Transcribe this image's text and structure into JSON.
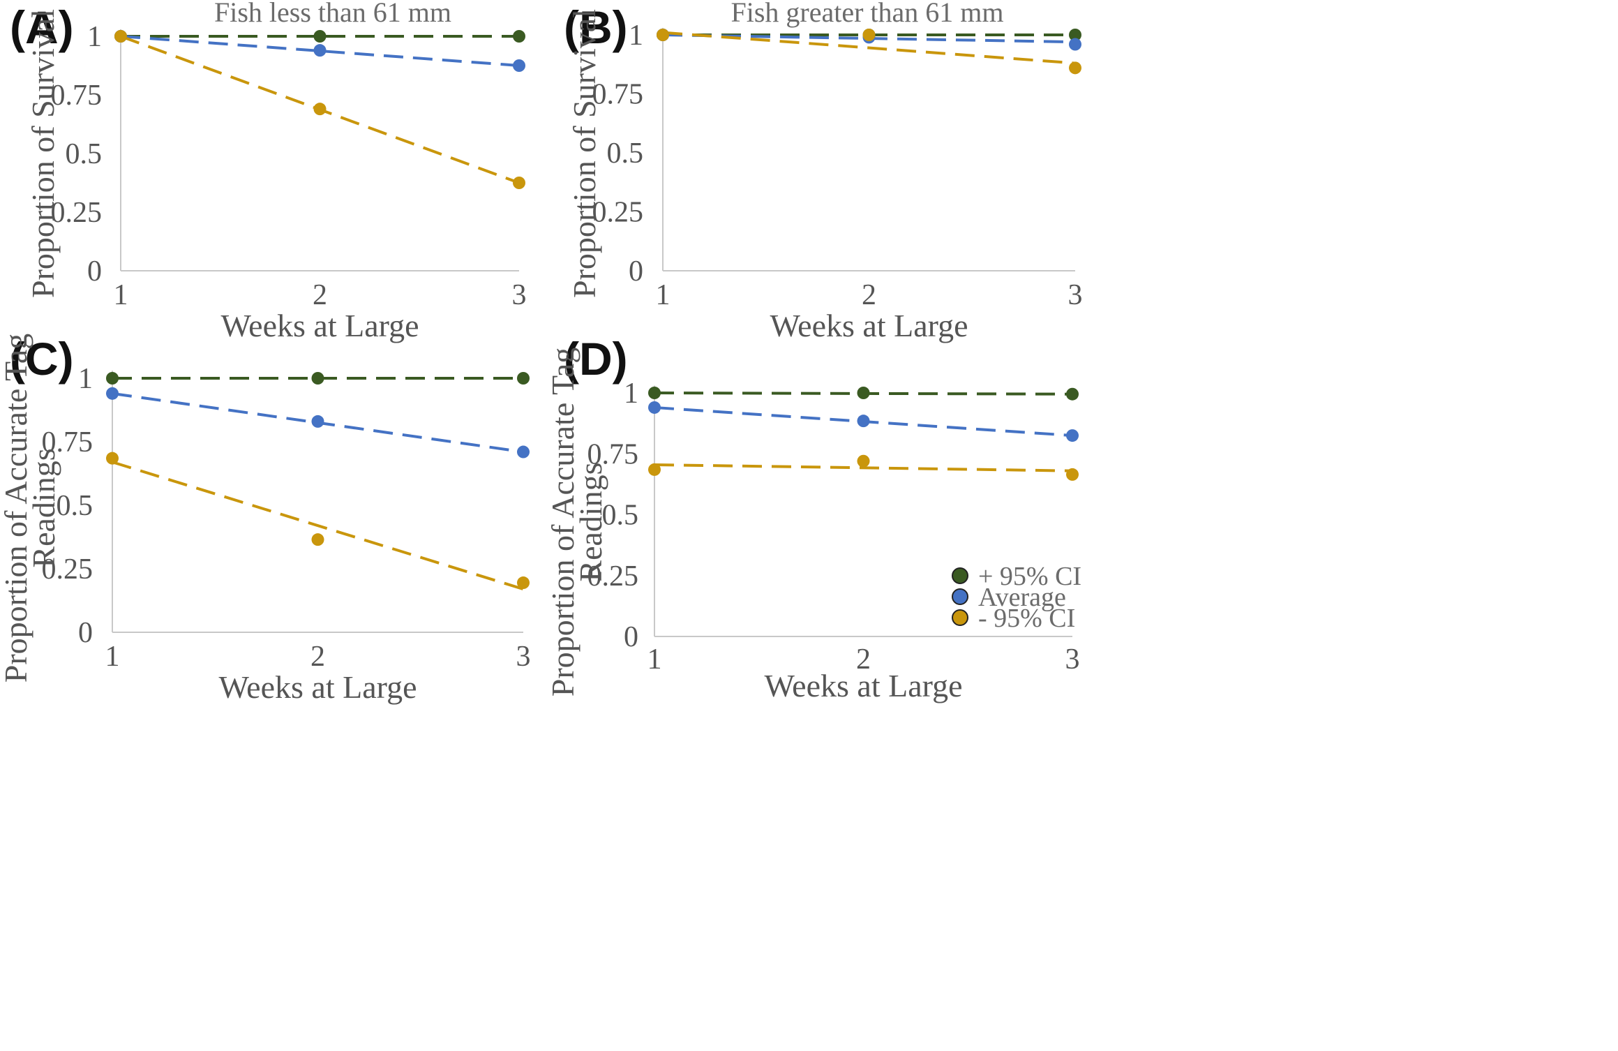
{
  "colors": {
    "plus_ci": "#3a5a22",
    "average": "#4472c4",
    "minus_ci": "#c9960c",
    "axis": "#c8c8c8"
  },
  "legend": {
    "items": [
      {
        "label": "+ 95% CI",
        "series": "plus_ci"
      },
      {
        "label": "Average",
        "series": "average"
      },
      {
        "label": "- 95% CI",
        "series": "minus_ci"
      }
    ]
  },
  "chart_data": [
    {
      "id": "A",
      "panel_label": "(A)",
      "type": "scatter",
      "title": "Fish less than 61 mm",
      "xlabel": "Weeks at Large",
      "ylabel": [
        "Proportion of Survival"
      ],
      "x": [
        1,
        2,
        3
      ],
      "xlim": [
        1,
        3
      ],
      "ylim": [
        0,
        1
      ],
      "xticks": [
        "1",
        "2",
        "3"
      ],
      "yticks": [
        {
          "v": 0,
          "t": "0"
        },
        {
          "v": 0.25,
          "t": "0.25"
        },
        {
          "v": 0.5,
          "t": "0.5"
        },
        {
          "v": 0.75,
          "t": "0.75"
        },
        {
          "v": 1,
          "t": "1"
        }
      ],
      "series": [
        {
          "key": "plus_ci",
          "name": "+ 95% CI",
          "values": [
            1.0,
            1.0,
            1.0
          ],
          "trend": [
            1.0,
            1.0
          ]
        },
        {
          "key": "average",
          "name": "Average",
          "values": [
            1.0,
            0.94,
            0.875
          ],
          "trend": [
            1.0,
            0.875
          ]
        },
        {
          "key": "minus_ci",
          "name": "- 95% CI",
          "values": [
            1.0,
            0.69,
            0.375
          ],
          "trend": [
            1.0,
            0.375
          ]
        }
      ]
    },
    {
      "id": "B",
      "panel_label": "(B)",
      "type": "scatter",
      "title": "Fish greater than 61 mm",
      "xlabel": "Weeks at Large",
      "ylabel": [
        "Proportion of Survival"
      ],
      "x": [
        1,
        2,
        3
      ],
      "xlim": [
        1,
        3
      ],
      "ylim": [
        0,
        1
      ],
      "xticks": [
        "1",
        "2",
        "3"
      ],
      "yticks": [
        {
          "v": 0,
          "t": "0"
        },
        {
          "v": 0.25,
          "t": "0.25"
        },
        {
          "v": 0.5,
          "t": "0.5"
        },
        {
          "v": 0.75,
          "t": "0.75"
        },
        {
          "v": 1,
          "t": "1"
        }
      ],
      "series": [
        {
          "key": "plus_ci",
          "name": "+ 95% CI",
          "values": [
            1.0,
            1.0,
            1.0
          ],
          "trend": [
            1.0,
            1.0
          ]
        },
        {
          "key": "average",
          "name": "Average",
          "values": [
            1.0,
            0.99,
            0.96
          ],
          "trend": [
            1.0,
            0.97
          ]
        },
        {
          "key": "minus_ci",
          "name": "- 95% CI",
          "values": [
            1.0,
            1.0,
            0.86
          ],
          "trend": [
            1.01,
            0.88
          ]
        }
      ]
    },
    {
      "id": "C",
      "panel_label": "(C)",
      "type": "scatter",
      "title": "",
      "xlabel": "Weeks at Large",
      "ylabel": [
        "Proportion of Accurate Tag",
        "Readings"
      ],
      "x": [
        1,
        2,
        3
      ],
      "xlim": [
        1,
        3
      ],
      "ylim": [
        0,
        1
      ],
      "xticks": [
        "1",
        "2",
        "3"
      ],
      "yticks": [
        {
          "v": 0,
          "t": "0"
        },
        {
          "v": 0.25,
          "t": "0.25"
        },
        {
          "v": 0.5,
          "t": "0.5"
        },
        {
          "v": 0.75,
          "t": "0.75"
        },
        {
          "v": 1,
          "t": "1"
        }
      ],
      "series": [
        {
          "key": "plus_ci",
          "name": "+ 95% CI",
          "values": [
            1.0,
            1.0,
            1.0
          ],
          "trend": [
            1.0,
            1.0
          ]
        },
        {
          "key": "average",
          "name": "Average",
          "values": [
            0.94,
            0.83,
            0.71
          ],
          "trend": [
            0.94,
            0.71
          ]
        },
        {
          "key": "minus_ci",
          "name": "- 95% CI",
          "values": [
            0.685,
            0.365,
            0.195
          ],
          "trend": [
            0.67,
            0.17
          ]
        }
      ]
    },
    {
      "id": "D",
      "panel_label": "(D)",
      "type": "scatter",
      "title": "",
      "xlabel": "Weeks at Large",
      "ylabel": [
        "Proportion of Accurate Tag",
        "Readings"
      ],
      "x": [
        1,
        2,
        3
      ],
      "xlim": [
        1,
        3
      ],
      "ylim": [
        0,
        1
      ],
      "xticks": [
        "1",
        "2",
        "3"
      ],
      "yticks": [
        {
          "v": 0,
          "t": "0"
        },
        {
          "v": 0.25,
          "t": "0.25"
        },
        {
          "v": 0.5,
          "t": "0.5"
        },
        {
          "v": 0.75,
          "t": "0.75"
        },
        {
          "v": 1,
          "t": "1"
        }
      ],
      "series": [
        {
          "key": "plus_ci",
          "name": "+ 95% CI",
          "values": [
            1.0,
            1.0,
            0.995
          ],
          "trend": [
            1.0,
            0.995
          ]
        },
        {
          "key": "average",
          "name": "Average",
          "values": [
            0.94,
            0.885,
            0.825
          ],
          "trend": [
            0.94,
            0.825
          ]
        },
        {
          "key": "minus_ci",
          "name": "- 95% CI",
          "values": [
            0.685,
            0.72,
            0.665
          ],
          "trend": [
            0.705,
            0.68
          ]
        }
      ]
    }
  ]
}
